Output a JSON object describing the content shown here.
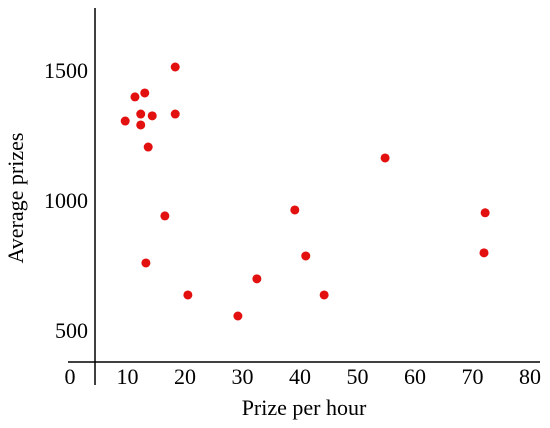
{
  "chart_data": {
    "type": "scatter",
    "x_label": "Prize per hour",
    "y_label": "Average prizes",
    "color": "#e31010",
    "x": [
      9.6,
      11.3,
      13.0,
      12.3,
      12.3,
      14.3,
      13.6,
      18.3,
      18.3,
      16.5,
      13.2,
      20.5,
      29.2,
      32.5,
      39.1,
      41.0,
      44.2,
      54.8,
      72.2,
      72.0
    ],
    "values": [
      1315,
      1408,
      1423,
      1342,
      1300,
      1335,
      1215,
      1523,
      1342,
      950,
      769,
      646,
      565,
      708,
      973,
      796,
      646,
      1173,
      962,
      808
    ],
    "xlim": [
      0,
      80
    ],
    "xticks": [
      0,
      10,
      20,
      30,
      40,
      50,
      60,
      70,
      80
    ],
    "ylim": [
      388,
      1750
    ],
    "yticks": [
      500,
      1000,
      1500
    ]
  }
}
